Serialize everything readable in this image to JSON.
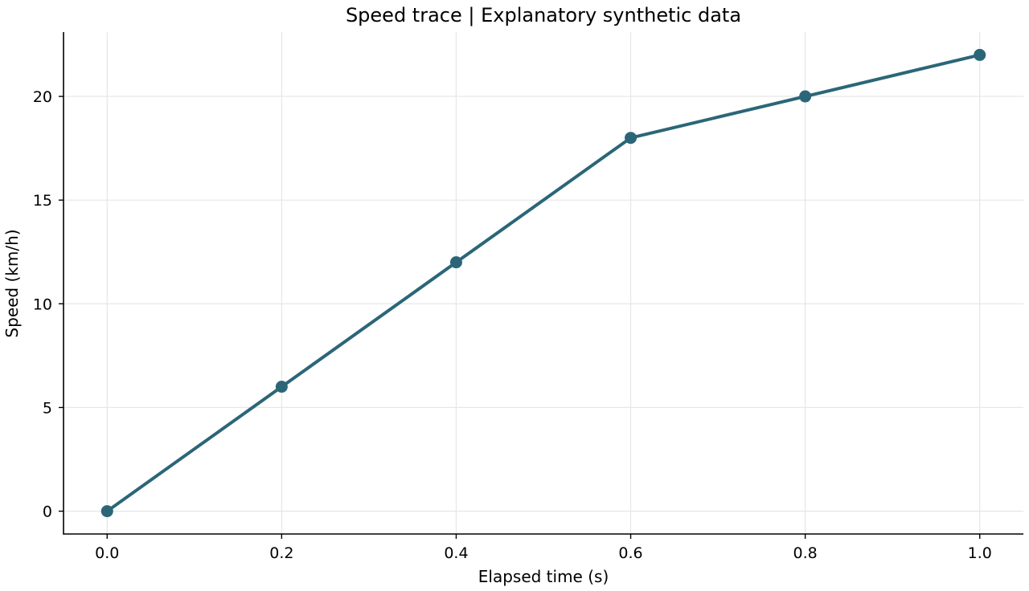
{
  "chart_data": {
    "type": "line",
    "title": "Speed trace | Explanatory synthetic data",
    "xlabel": "Elapsed time (s)",
    "ylabel": "Speed (km/h)",
    "x": [
      0.0,
      0.2,
      0.4,
      0.6,
      0.8,
      1.0
    ],
    "series": [
      {
        "values": [
          0,
          6,
          12,
          18,
          20,
          22
        ],
        "color": "#2b6678"
      }
    ],
    "xlim": [
      -0.05,
      1.05
    ],
    "ylim": [
      -1.1,
      23.1
    ],
    "xticks": [
      0.0,
      0.2,
      0.4,
      0.6,
      0.8,
      1.0
    ],
    "xtick_labels": [
      "0.0",
      "0.2",
      "0.4",
      "0.6",
      "0.8",
      "1.0"
    ],
    "yticks": [
      0,
      5,
      10,
      15,
      20
    ],
    "ytick_labels": [
      "0",
      "5",
      "10",
      "15",
      "20"
    ],
    "grid": true,
    "markers": "circle"
  }
}
